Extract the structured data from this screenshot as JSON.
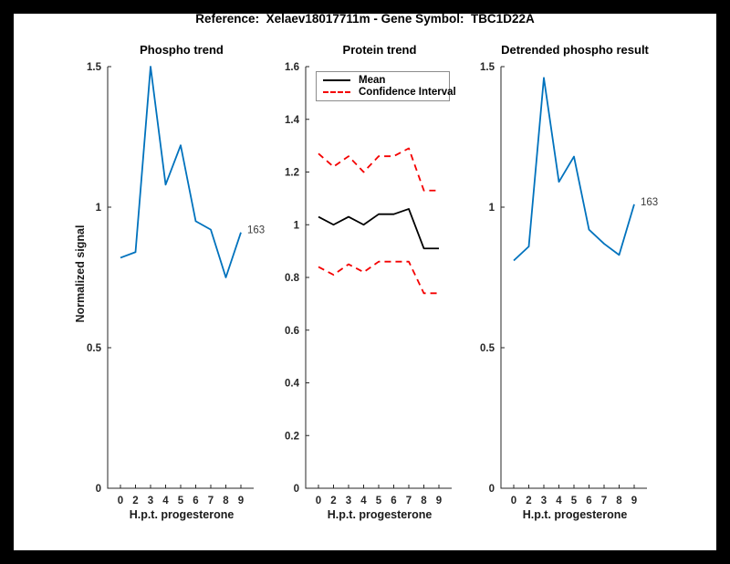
{
  "figure": {
    "title": "Reference:  Xelaev18017711m - Gene Symbol:  TBC1D22A",
    "background_color": "#ffffff",
    "frame_color": "#000000"
  },
  "colors": {
    "series_blue": "#0072BD",
    "series_red": "#F40000",
    "series_black": "#000000",
    "axis_color": "#262626"
  },
  "chart_data": [
    {
      "type": "line",
      "title": "Phospho trend",
      "xlabel": "H.p.t. progesterone",
      "ylabel": "Normalized signal",
      "x_values": [
        0,
        2,
        3,
        4,
        5,
        6,
        7,
        8,
        9
      ],
      "x_ticklabels": [
        "0",
        "2",
        "3",
        "4",
        "5",
        "6",
        "7",
        "8",
        "9"
      ],
      "x_spacing": "equal",
      "ylim": [
        0,
        1.5
      ],
      "yticks": [
        0,
        0.5,
        1,
        1.5
      ],
      "ytick_labels": [
        "0",
        "0.5",
        "1",
        "1.5"
      ],
      "grid": false,
      "series": [
        {
          "name": "phospho-signal",
          "color": "#0072BD",
          "style": "solid",
          "values": [
            0.82,
            0.84,
            1.5,
            1.08,
            1.22,
            0.95,
            0.92,
            0.75,
            0.91
          ]
        }
      ],
      "annotation": {
        "text": "163",
        "position": "right-of-last-point"
      }
    },
    {
      "type": "line",
      "title": "Protein trend",
      "xlabel": "H.p.t. progesterone",
      "ylabel": "",
      "x_values": [
        0,
        2,
        3,
        4,
        5,
        6,
        7,
        8,
        9
      ],
      "x_ticklabels": [
        "0",
        "2",
        "3",
        "4",
        "5",
        "6",
        "7",
        "8",
        "9"
      ],
      "x_spacing": "equal",
      "ylim": [
        0,
        1.6
      ],
      "yticks": [
        0,
        0.2,
        0.4,
        0.6,
        0.8,
        1,
        1.2,
        1.4,
        1.6
      ],
      "ytick_labels": [
        "0",
        "0.2",
        "0.4",
        "0.6",
        "0.8",
        "1",
        "1.2",
        "1.4",
        "1.6"
      ],
      "grid": false,
      "legend": {
        "position": "northwest",
        "entries": [
          {
            "label": "Mean",
            "color": "#000000",
            "style": "solid"
          },
          {
            "label": "Confidence Interval",
            "color": "#F40000",
            "style": "dashed"
          }
        ]
      },
      "series": [
        {
          "name": "mean",
          "color": "#000000",
          "style": "solid",
          "values": [
            1.03,
            1.0,
            1.03,
            1.0,
            1.04,
            1.04,
            1.06,
            0.91,
            0.91
          ]
        },
        {
          "name": "ci-upper",
          "color": "#F40000",
          "style": "dashed",
          "values": [
            1.27,
            1.22,
            1.26,
            1.2,
            1.26,
            1.26,
            1.29,
            1.13,
            1.13
          ]
        },
        {
          "name": "ci-lower",
          "color": "#F40000",
          "style": "dashed",
          "values": [
            0.84,
            0.81,
            0.85,
            0.82,
            0.86,
            0.86,
            0.86,
            0.74,
            0.74
          ]
        }
      ]
    },
    {
      "type": "line",
      "title": "Detrended phospho result",
      "xlabel": "H.p.t. progesterone",
      "ylabel": "",
      "x_values": [
        0,
        2,
        3,
        4,
        5,
        6,
        7,
        8,
        9
      ],
      "x_ticklabels": [
        "0",
        "2",
        "3",
        "4",
        "5",
        "6",
        "7",
        "8",
        "9"
      ],
      "x_spacing": "equal",
      "ylim": [
        0,
        1.5
      ],
      "yticks": [
        0,
        0.5,
        1,
        1.5
      ],
      "ytick_labels": [
        "0",
        "0.5",
        "1",
        "1.5"
      ],
      "grid": false,
      "series": [
        {
          "name": "detrended-phospho",
          "color": "#0072BD",
          "style": "solid",
          "values": [
            0.81,
            0.86,
            1.46,
            1.09,
            1.18,
            0.92,
            0.87,
            0.83,
            1.01
          ]
        }
      ],
      "annotation": {
        "text": "163",
        "position": "right-of-last-point"
      }
    }
  ]
}
